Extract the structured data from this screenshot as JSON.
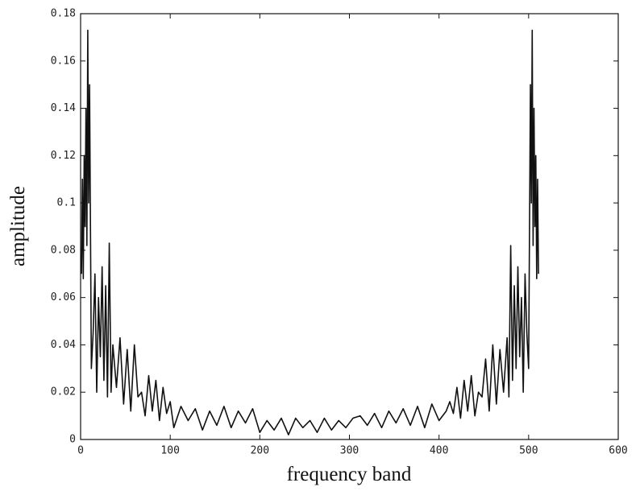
{
  "chart_data": {
    "type": "line",
    "x_label": "frequency band",
    "y_label": "amplitude",
    "x": [
      1,
      2,
      3,
      4,
      5,
      6,
      7,
      8,
      9,
      10,
      12,
      14,
      16,
      18,
      20,
      22,
      24,
      26,
      28,
      30,
      32,
      34,
      36,
      40,
      44,
      48,
      52,
      56,
      60,
      64,
      68,
      72,
      76,
      80,
      84,
      88,
      92,
      96,
      100,
      104,
      112,
      120,
      128,
      136,
      144,
      152,
      160,
      168,
      176,
      184,
      192,
      200,
      208,
      216,
      224,
      232,
      240,
      248,
      256,
      264,
      272,
      280,
      288,
      296,
      304,
      312,
      320,
      328,
      336,
      344,
      352,
      360,
      368,
      376,
      384,
      392,
      400,
      408,
      412,
      416,
      420,
      424,
      428,
      432,
      436,
      440,
      444,
      448,
      452,
      456,
      460,
      464,
      468,
      472,
      476,
      478,
      480,
      482,
      484,
      486,
      488,
      490,
      492,
      494,
      496,
      498,
      500,
      502,
      503,
      504,
      505,
      506,
      507,
      508,
      509,
      510,
      511
    ],
    "series": [
      {
        "color": "#111111",
        "values": [
          0.07,
          0.11,
          0.068,
          0.12,
          0.09,
          0.14,
          0.082,
          0.173,
          0.1,
          0.15,
          0.03,
          0.045,
          0.07,
          0.02,
          0.06,
          0.035,
          0.073,
          0.025,
          0.065,
          0.018,
          0.083,
          0.02,
          0.04,
          0.022,
          0.043,
          0.015,
          0.038,
          0.012,
          0.04,
          0.018,
          0.02,
          0.01,
          0.027,
          0.012,
          0.025,
          0.008,
          0.022,
          0.011,
          0.016,
          0.005,
          0.014,
          0.008,
          0.013,
          0.004,
          0.012,
          0.006,
          0.014,
          0.005,
          0.012,
          0.007,
          0.013,
          0.003,
          0.008,
          0.004,
          0.009,
          0.002,
          0.009,
          0.005,
          0.008,
          0.003,
          0.009,
          0.004,
          0.008,
          0.005,
          0.009,
          0.01,
          0.006,
          0.011,
          0.005,
          0.012,
          0.007,
          0.013,
          0.006,
          0.014,
          0.005,
          0.015,
          0.008,
          0.012,
          0.016,
          0.011,
          0.022,
          0.009,
          0.025,
          0.012,
          0.027,
          0.01,
          0.02,
          0.018,
          0.034,
          0.012,
          0.04,
          0.015,
          0.038,
          0.02,
          0.043,
          0.018,
          0.082,
          0.025,
          0.065,
          0.03,
          0.073,
          0.035,
          0.06,
          0.02,
          0.07,
          0.045,
          0.03,
          0.15,
          0.1,
          0.173,
          0.082,
          0.14,
          0.09,
          0.12,
          0.068,
          0.11,
          0.07
        ]
      }
    ],
    "xlim": [
      0,
      600
    ],
    "xticks": [
      0,
      100,
      200,
      300,
      400,
      500,
      600
    ],
    "ylim": [
      0,
      0.18
    ],
    "yticks": [
      0,
      0.02,
      0.04,
      0.06,
      0.08,
      0.1,
      0.12,
      0.14,
      0.16,
      0.18
    ],
    "grid": false
  }
}
